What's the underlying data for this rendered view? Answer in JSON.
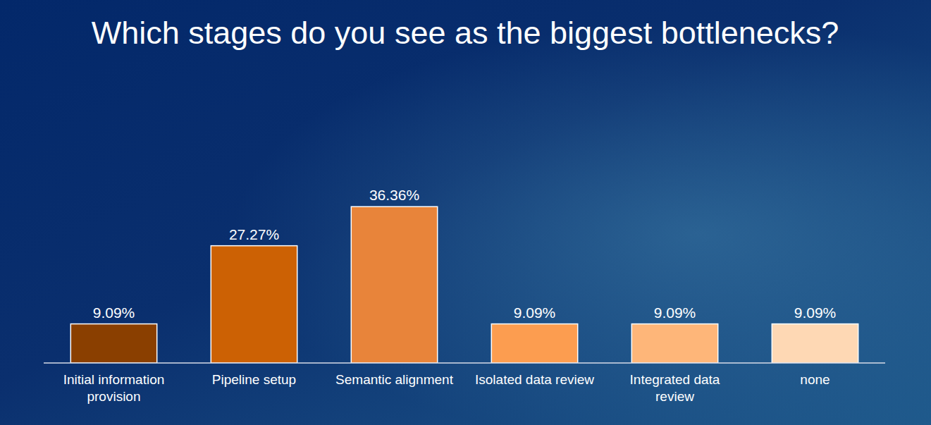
{
  "chart_data": {
    "type": "bar",
    "title": "Which stages do you see as the biggest bottlenecks?",
    "categories": [
      "Initial information provision",
      "Pipeline setup",
      "Semantic alignment",
      "Isolated data review",
      "Integrated data review",
      "none"
    ],
    "values": [
      9.09,
      27.27,
      36.36,
      9.09,
      9.09,
      9.09
    ],
    "value_labels": [
      "9.09%",
      "27.27%",
      "36.36%",
      "9.09%",
      "9.09%",
      "9.09%"
    ],
    "colors": [
      "#8a3f00",
      "#cc6104",
      "#e8843a",
      "#fc9d50",
      "#feb679",
      "#fed8b4"
    ],
    "ylim": [
      0,
      40
    ],
    "data_labels": true,
    "tick_labels": "x",
    "grid": false
  }
}
